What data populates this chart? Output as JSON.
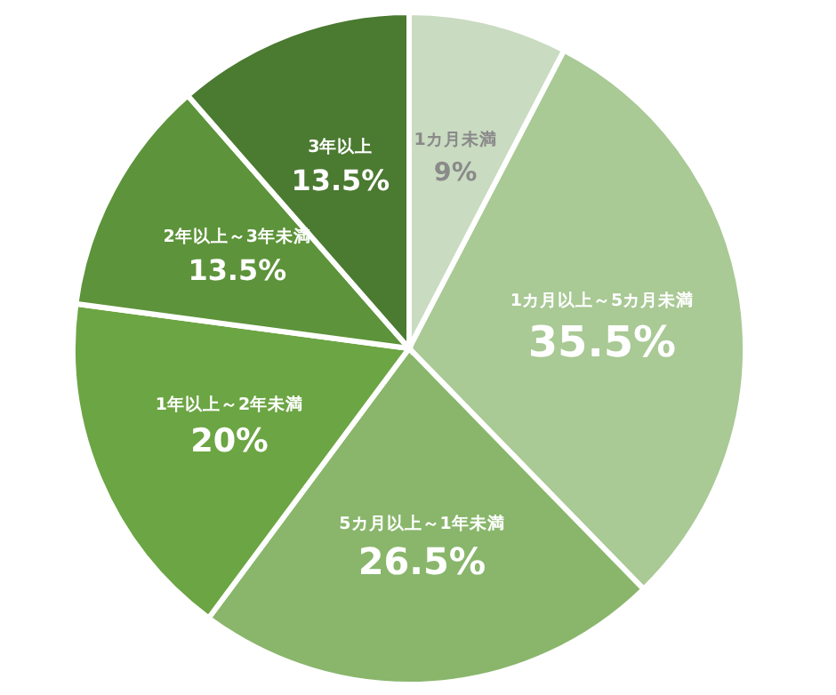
{
  "chart_data": {
    "type": "pie",
    "categories": [
      "1カ月未満",
      "1カ月以上～5カ月未満",
      "5カ月以上～1年未満",
      "1年以上～2年未満",
      "2年以上～3年未満",
      "3年以上"
    ],
    "values": [
      9,
      35.5,
      26.5,
      20,
      13.5,
      13.5
    ],
    "colors": [
      "#c9dbc0",
      "#a9c995",
      "#89b66b",
      "#6ca543",
      "#5d933a",
      "#4b7a31"
    ],
    "value_labels": [
      "9%",
      "35.5%",
      "26.5%",
      "20%",
      "13.5%",
      "13.5%"
    ]
  }
}
